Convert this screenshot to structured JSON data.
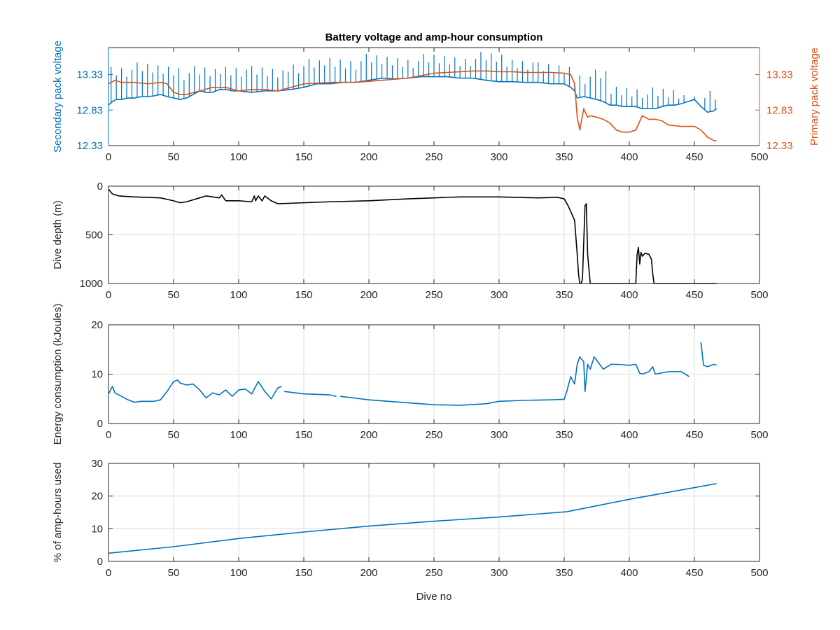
{
  "chart_data": [
    {
      "type": "line",
      "title": "Battery voltage and amp-hour consumption",
      "xlim": [
        0,
        500
      ],
      "xticks": [
        0,
        50,
        100,
        150,
        200,
        250,
        300,
        350,
        400,
        450,
        500
      ],
      "ylabel": "Secondary pack voltage",
      "ylim": [
        12.33,
        13.71
      ],
      "yticks": [
        "12.33",
        "12.83",
        "13.33"
      ],
      "y2label": "Primary pack voltage",
      "y2lim": [
        12.33,
        13.71
      ],
      "y2ticks": [
        "12.33",
        "12.83",
        "13.33"
      ],
      "grid": false,
      "colors": {
        "left": "#0072BD",
        "right": "#D95319"
      },
      "series": [
        {
          "axis": "left",
          "color": "#0072BD",
          "x": [
            0,
            3,
            6,
            10,
            15,
            20,
            25,
            30,
            35,
            40,
            45,
            50,
            55,
            60,
            65,
            70,
            75,
            80,
            85,
            90,
            95,
            100,
            110,
            120,
            130,
            140,
            150,
            160,
            170,
            180,
            190,
            200,
            210,
            220,
            230,
            240,
            250,
            260,
            270,
            280,
            290,
            300,
            310,
            320,
            330,
            340,
            350,
            355,
            358,
            360,
            365,
            370,
            375,
            380,
            385,
            390,
            395,
            400,
            405,
            410,
            415,
            420,
            425,
            430,
            435,
            440,
            445,
            450,
            455,
            460,
            465,
            467
          ],
          "y": [
            12.9,
            12.95,
            12.98,
            12.98,
            13.0,
            13.0,
            13.02,
            13.02,
            13.03,
            13.05,
            13.02,
            13.0,
            12.98,
            13.0,
            13.05,
            13.1,
            13.08,
            13.08,
            13.12,
            13.12,
            13.1,
            13.1,
            13.08,
            13.1,
            13.1,
            13.12,
            13.15,
            13.2,
            13.2,
            13.22,
            13.22,
            13.25,
            13.28,
            13.27,
            13.28,
            13.3,
            13.3,
            13.3,
            13.28,
            13.28,
            13.25,
            13.23,
            13.23,
            13.22,
            13.22,
            13.2,
            13.2,
            13.15,
            13.1,
            13.0,
            13.02,
            13.0,
            12.98,
            12.95,
            12.9,
            12.9,
            12.88,
            12.88,
            12.88,
            12.85,
            12.85,
            12.85,
            12.88,
            12.9,
            12.9,
            12.92,
            12.95,
            12.98,
            12.88,
            12.8,
            12.82,
            12.85
          ],
          "spikes_to": [
            13.5,
            13.5,
            13.45,
            13.5,
            13.45,
            13.55,
            13.6,
            13.62,
            13.62,
            13.63,
            13.65,
            13.6,
            13.5,
            13.4,
            13.2,
            13.15,
            13.1
          ]
        },
        {
          "axis": "right",
          "color": "#D95319",
          "x": [
            0,
            5,
            10,
            20,
            30,
            40,
            45,
            50,
            55,
            60,
            70,
            80,
            90,
            100,
            110,
            120,
            130,
            140,
            150,
            170,
            190,
            210,
            230,
            250,
            260,
            270,
            280,
            290,
            300,
            310,
            320,
            330,
            340,
            350,
            355,
            358,
            360,
            362,
            365,
            368,
            370,
            375,
            380,
            385,
            390,
            395,
            400,
            405,
            410,
            415,
            420,
            425,
            430,
            440,
            450,
            455,
            460,
            465,
            467
          ],
          "y": [
            13.2,
            13.25,
            13.22,
            13.22,
            13.2,
            13.22,
            13.2,
            13.08,
            13.05,
            13.05,
            13.1,
            13.15,
            13.15,
            13.1,
            13.12,
            13.12,
            13.1,
            13.15,
            13.2,
            13.22,
            13.22,
            13.25,
            13.28,
            13.35,
            13.36,
            13.37,
            13.38,
            13.38,
            13.37,
            13.37,
            13.36,
            13.36,
            13.36,
            13.35,
            13.33,
            13.2,
            12.73,
            12.55,
            12.85,
            12.73,
            12.75,
            12.73,
            12.7,
            12.65,
            12.55,
            12.52,
            12.52,
            12.55,
            12.75,
            12.7,
            12.7,
            12.68,
            12.62,
            12.6,
            12.6,
            12.55,
            12.45,
            12.4,
            12.4
          ]
        }
      ]
    },
    {
      "type": "line",
      "title": "",
      "xlim": [
        0,
        500
      ],
      "xticks": [
        0,
        50,
        100,
        150,
        200,
        250,
        300,
        350,
        400,
        450,
        500
      ],
      "ylabel": "Dive depth (m)",
      "ylim": [
        1000,
        0
      ],
      "yticks": [
        0,
        500,
        1000
      ],
      "y_reversed": true,
      "grid": true,
      "series": [
        {
          "color": "#000000",
          "x": [
            0,
            3,
            8,
            20,
            40,
            50,
            55,
            60,
            70,
            75,
            80,
            85,
            87,
            90,
            100,
            110,
            112,
            113,
            115,
            118,
            120,
            125,
            130,
            150,
            170,
            200,
            230,
            250,
            270,
            300,
            330,
            345,
            350,
            353,
            355,
            358,
            360,
            361,
            362,
            363,
            364,
            366,
            367,
            368,
            370,
            380,
            390,
            400,
            405,
            406,
            407,
            408,
            409,
            410,
            412,
            415,
            417,
            418,
            419,
            420,
            430,
            440,
            450,
            460,
            467
          ],
          "y": [
            30,
            80,
            100,
            110,
            120,
            150,
            170,
            160,
            120,
            100,
            110,
            120,
            90,
            150,
            150,
            160,
            100,
            150,
            100,
            150,
            100,
            150,
            180,
            170,
            160,
            150,
            130,
            120,
            110,
            110,
            120,
            115,
            130,
            200,
            260,
            350,
            700,
            900,
            1000,
            1000,
            960,
            200,
            180,
            700,
            1000,
            1000,
            1000,
            1000,
            1000,
            700,
            630,
            800,
            680,
            720,
            690,
            700,
            750,
            900,
            1000,
            1000,
            1000,
            1000,
            1000,
            1000,
            1000
          ]
        }
      ]
    },
    {
      "type": "line",
      "title": "",
      "xlim": [
        0,
        500
      ],
      "xticks": [
        0,
        50,
        100,
        150,
        200,
        250,
        300,
        350,
        400,
        450,
        500
      ],
      "ylabel": "Energy consumption (kJoules)",
      "ylim": [
        0,
        20
      ],
      "yticks": [
        0,
        10,
        20
      ],
      "grid": true,
      "series": [
        {
          "color": "#0072BD",
          "segments": [
            {
              "x": [
                0,
                3,
                5,
                10,
                15,
                20,
                25,
                30,
                35,
                40,
                45,
                50,
                53,
                55,
                60,
                65,
                70,
                75,
                80,
                85,
                90,
                95,
                100,
                105,
                110,
                115,
                120,
                125,
                130,
                133
              ],
              "y": [
                6,
                7.5,
                6.2,
                5.5,
                4.8,
                4.3,
                4.5,
                4.5,
                4.5,
                4.8,
                6.5,
                8.5,
                8.8,
                8.2,
                7.8,
                8.0,
                6.8,
                5.2,
                6.2,
                5.8,
                6.8,
                5.5,
                6.8,
                7.0,
                6.0,
                8.5,
                6.5,
                5.0,
                7.2,
                7.5
              ]
            },
            {
              "x": [
                135,
                150,
                170,
                175
              ],
              "y": [
                6.5,
                6.0,
                5.8,
                5.5
              ]
            },
            {
              "x": [
                178,
                200,
                230,
                250,
                270,
                290,
                300,
                320,
                340,
                350,
                352,
                355,
                358,
                360,
                362,
                365,
                366,
                368,
                370,
                373,
                375,
                380,
                383,
                386,
                390,
                400,
                405,
                408,
                410,
                415,
                418,
                420,
                430,
                440,
                446
              ],
              "y": [
                5.5,
                4.8,
                4.2,
                3.8,
                3.7,
                4.0,
                4.5,
                4.7,
                4.8,
                4.9,
                6.5,
                9.5,
                8.0,
                12.0,
                13.5,
                12.5,
                6.5,
                12.0,
                11.0,
                13.5,
                12.8,
                11.0,
                11.5,
                12.0,
                12.0,
                11.8,
                12.0,
                10.2,
                10.0,
                10.5,
                11.5,
                10.0,
                10.5,
                10.5,
                9.5
              ]
            },
            {
              "x": [
                455,
                457,
                460,
                465,
                467
              ],
              "y": [
                16.5,
                11.8,
                11.5,
                12.0,
                11.8
              ]
            }
          ]
        }
      ]
    },
    {
      "type": "line",
      "title": "",
      "xlim": [
        0,
        500
      ],
      "xticks": [
        0,
        50,
        100,
        150,
        200,
        250,
        300,
        350,
        400,
        450,
        500
      ],
      "xlabel": "Dive no",
      "ylabel": "% of amp-hours used",
      "ylim": [
        0,
        30
      ],
      "yticks": [
        0,
        10,
        20,
        30
      ],
      "grid": true,
      "series": [
        {
          "color": "#0072BD",
          "x": [
            0,
            50,
            100,
            150,
            200,
            250,
            300,
            352,
            400,
            467
          ],
          "y": [
            2.5,
            4.5,
            7.0,
            9.0,
            10.8,
            12.3,
            13.6,
            15.2,
            19.0,
            23.8
          ]
        }
      ]
    }
  ]
}
